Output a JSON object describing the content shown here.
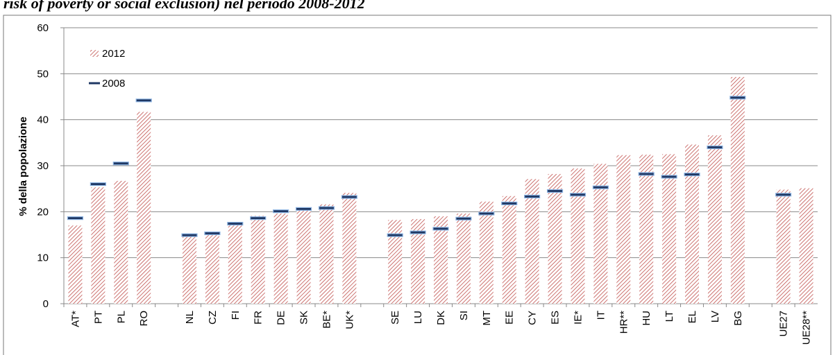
{
  "chart_data": {
    "type": "bar",
    "title": "risk of poverty or social exclusion) nel periodo 2008-2012",
    "y_label": "% della popolazione",
    "categories": [
      "AT*",
      "PT",
      "PL",
      "RO",
      null,
      "NL",
      "CZ",
      "FI",
      "FR",
      "DE",
      "SK",
      "BE*",
      "UK*",
      null,
      "SE",
      "LU",
      "DK",
      "SI",
      "MT",
      "EE",
      "CY",
      "ES",
      "IE*",
      "IT",
      "HR**",
      "HU",
      "LT",
      "EL",
      "LV",
      "BG",
      null,
      "UE27",
      "UE28**"
    ],
    "series": [
      {
        "name": "2012",
        "color": "#c0504d",
        "style": "hatched-bar",
        "values": [
          17,
          25.3,
          26.7,
          41.7,
          null,
          15,
          15.4,
          17.2,
          19.1,
          19.6,
          20.5,
          21.6,
          24.1,
          null,
          18.2,
          18.4,
          19,
          19.6,
          22.2,
          23.4,
          27.1,
          28.2,
          29.4,
          30.4,
          32.3,
          32.4,
          32.5,
          34.6,
          36.6,
          49.3,
          null,
          24.8,
          25.1
        ]
      },
      {
        "name": "2008",
        "color": "#1f3864",
        "style": "dash",
        "values": [
          18.6,
          26,
          30.5,
          44.2,
          null,
          14.9,
          15.3,
          17.4,
          18.6,
          20.1,
          20.6,
          20.8,
          23.2,
          null,
          14.9,
          15.5,
          16.3,
          18.5,
          19.6,
          21.8,
          23.3,
          24.5,
          23.7,
          25.3,
          null,
          28.2,
          27.6,
          28.1,
          34,
          44.8,
          null,
          23.7,
          null
        ]
      }
    ],
    "ylim": [
      0,
      60
    ],
    "yticks": [
      0,
      10,
      20,
      30,
      40,
      50,
      60
    ],
    "grid": true,
    "legend": "top-left"
  }
}
